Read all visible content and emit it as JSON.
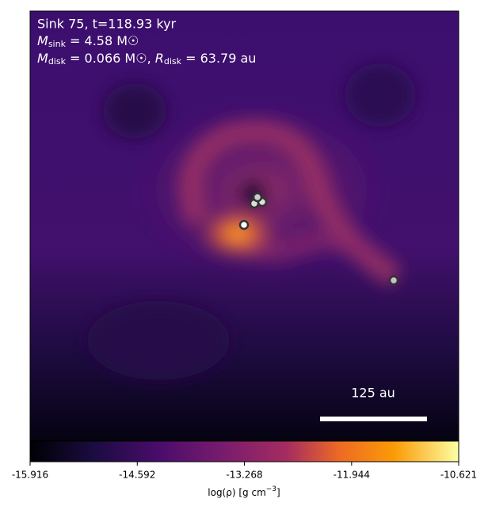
{
  "chart_data": {
    "type": "heatmap",
    "annotations": {
      "line1": "Sink 75, t=118.93 kyr",
      "line2": {
        "symbol": "M",
        "sub": "sink",
        "rest": " = 4.58 M☉"
      },
      "line3": {
        "symbol": "M",
        "sub": "disk",
        "rest": " = 0.066 M☉, ",
        "symbol2": "R",
        "sub2": "disk",
        "rest2": " = 63.79 au"
      }
    },
    "scale_bar": "125 au",
    "colorbar": {
      "label": {
        "text": "log(ρ) [g cm",
        "sup": "−3",
        "end": "]"
      },
      "xlim": [
        -15.916,
        -10.621
      ],
      "xticks": [
        -15.916,
        -14.592,
        -13.268,
        -11.944,
        -10.621
      ]
    }
  }
}
